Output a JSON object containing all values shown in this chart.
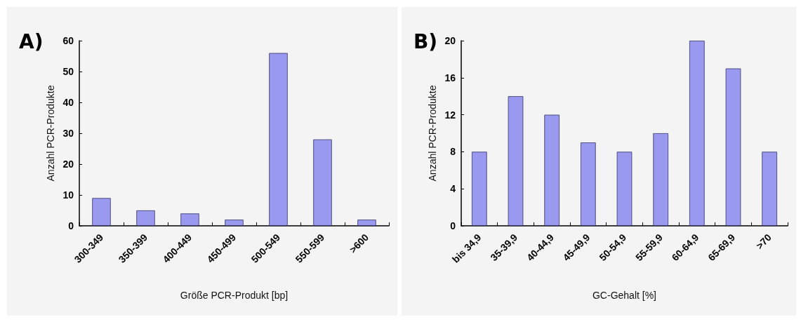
{
  "chart_data": [
    {
      "type": "bar",
      "title": "A)",
      "xlabel": "Größe PCR-Produkt [bp]",
      "ylabel": "Anzahl PCR-Produkte",
      "categories": [
        "300-349",
        "350-399",
        "400-449",
        "450-499",
        "500-549",
        "550-599",
        ">600"
      ],
      "values": [
        9,
        5,
        4,
        2,
        56,
        28,
        2
      ],
      "color": "#9999f0",
      "ylim": [
        0,
        60
      ],
      "yticks": [
        0,
        10,
        20,
        30,
        40,
        50,
        60
      ]
    },
    {
      "type": "bar",
      "title": "B)",
      "xlabel": "GC-Gehalt [%]",
      "ylabel": "Anzahl PCR-Produkte",
      "categories": [
        "bis 34,9",
        "35-39,9",
        "40-44,9",
        "45-49,9",
        "50-54,9",
        "55-59,9",
        "60-64,9",
        "65-69,9",
        ">70"
      ],
      "values": [
        8,
        14,
        12,
        9,
        8,
        10,
        20,
        17,
        8
      ],
      "color": "#9999f0",
      "ylim": [
        0,
        20
      ],
      "yticks": [
        0,
        4,
        8,
        12,
        16,
        20
      ]
    }
  ]
}
